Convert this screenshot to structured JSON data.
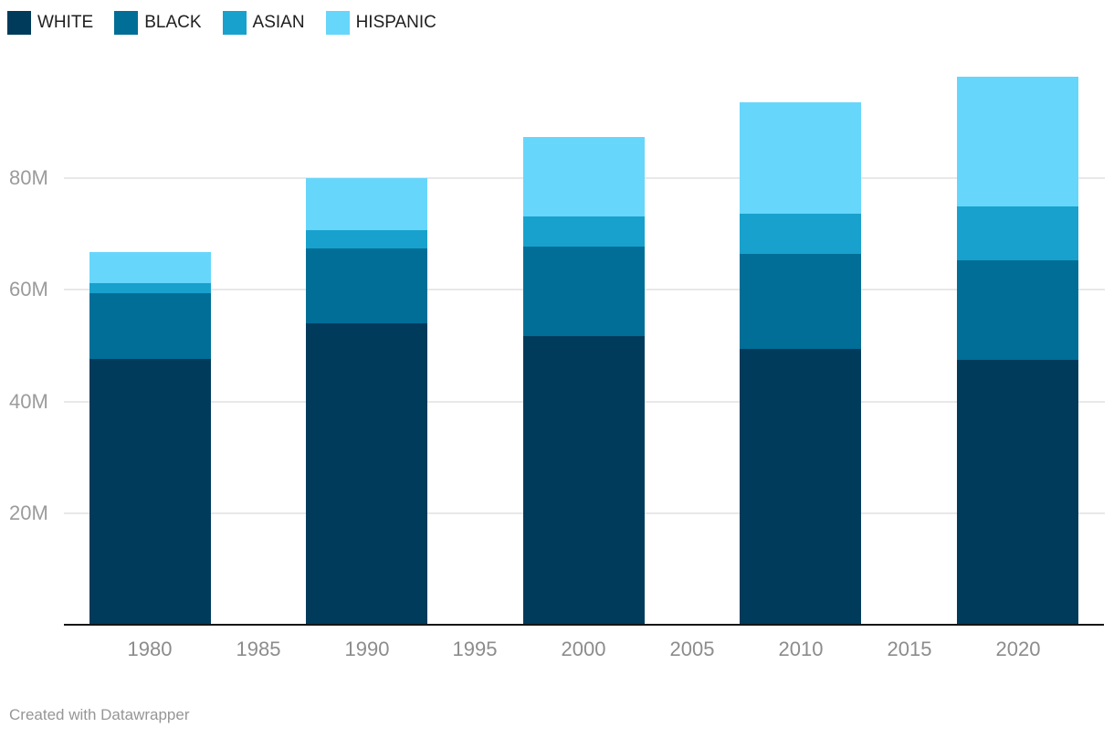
{
  "legend": {
    "items": [
      {
        "label": "WHITE",
        "color": "#003b5c"
      },
      {
        "label": "BLACK",
        "color": "#006e96"
      },
      {
        "label": "ASIAN",
        "color": "#18a1cd"
      },
      {
        "label": "HISPANIC",
        "color": "#67d6fb"
      }
    ]
  },
  "chart_data": {
    "type": "bar",
    "stacked": true,
    "title": "",
    "xlabel": "",
    "ylabel": "",
    "unit": "M",
    "grid": "horizontal",
    "legend_position": "top-left",
    "categories": [
      1980,
      1990,
      2000,
      2010,
      2020
    ],
    "series": [
      {
        "name": "WHITE",
        "color": "#003b5c",
        "values": [
          47.7,
          54.1,
          51.8,
          49.4,
          47.5
        ]
      },
      {
        "name": "BLACK",
        "color": "#006e96",
        "values": [
          11.8,
          13.4,
          15.9,
          17.1,
          17.9
        ]
      },
      {
        "name": "ASIAN",
        "color": "#18a1cd",
        "values": [
          1.8,
          3.3,
          5.5,
          7.2,
          9.5
        ]
      },
      {
        "name": "HISPANIC",
        "color": "#67d6fb",
        "values": [
          5.5,
          9.3,
          14.3,
          19.9,
          23.4
        ]
      }
    ],
    "totals": [
      66.8,
      80.1,
      87.5,
      93.6,
      98.3
    ],
    "x_ticks": [
      1980,
      1985,
      1990,
      1995,
      2000,
      2005,
      2010,
      2015,
      2020
    ],
    "y_ticks": [
      {
        "value": 20,
        "label": "20M"
      },
      {
        "value": 40,
        "label": "40M"
      },
      {
        "value": 60,
        "label": "60M"
      },
      {
        "value": 80,
        "label": "80M"
      }
    ],
    "ylim": [
      0,
      100
    ]
  },
  "footer": {
    "credit": "Created with Datawrapper"
  }
}
